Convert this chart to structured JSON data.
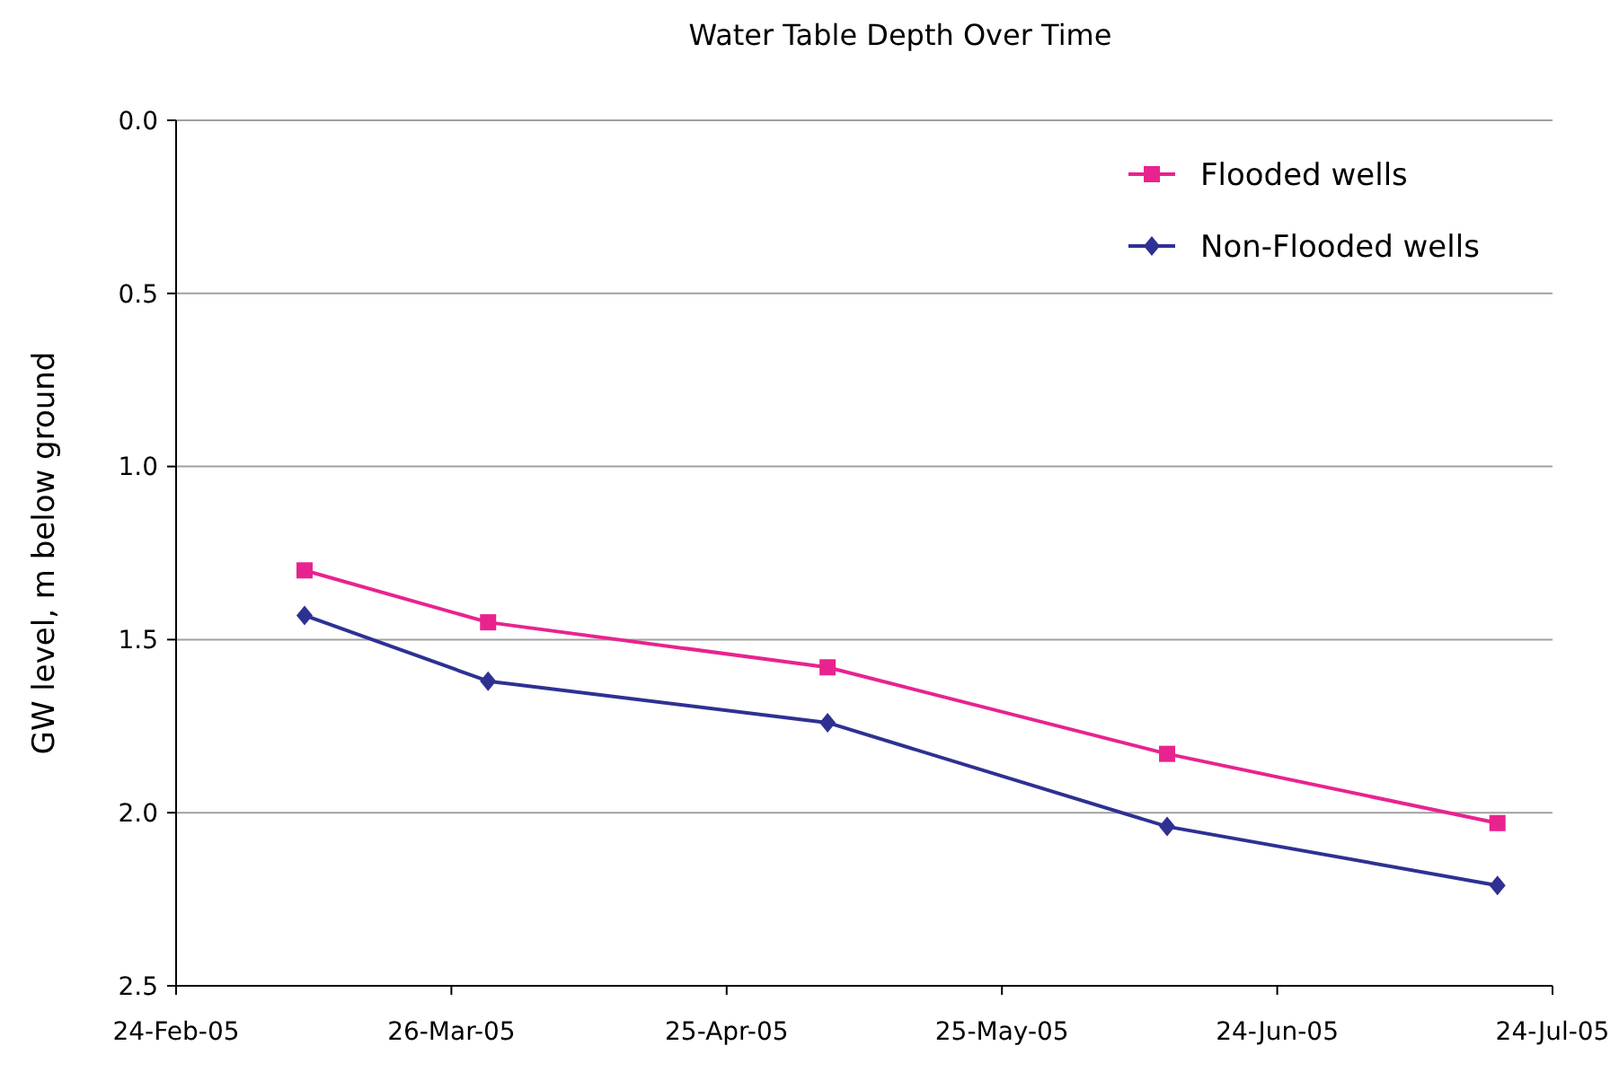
{
  "chart_data": {
    "type": "line",
    "title": "Water Table Depth Over Time",
    "ylabel": "GW level, m below ground",
    "x": [
      "2005-03-10",
      "2005-03-30",
      "2005-05-06",
      "2005-06-12",
      "2005-07-18"
    ],
    "series": [
      {
        "name": "Flooded wells",
        "color": "#e8238f",
        "marker": "square",
        "values": [
          1.3,
          1.45,
          1.58,
          1.83,
          2.03
        ]
      },
      {
        "name": "Non-Flooded wells",
        "color": "#2e3192",
        "marker": "diamond",
        "values": [
          1.43,
          1.62,
          1.74,
          2.04,
          2.21
        ]
      }
    ],
    "xlim": [
      "2005-02-24",
      "2005-07-24"
    ],
    "xticks": [
      {
        "value": "2005-02-24",
        "label": "24-Feb-05"
      },
      {
        "value": "2005-03-26",
        "label": "26-Mar-05"
      },
      {
        "value": "2005-04-25",
        "label": "25-Apr-05"
      },
      {
        "value": "2005-05-25",
        "label": "25-May-05"
      },
      {
        "value": "2005-06-24",
        "label": "24-Jun-05"
      },
      {
        "value": "2005-07-24",
        "label": "24-Jul-05"
      }
    ],
    "ylim": [
      2.5,
      0
    ],
    "yticks": [
      {
        "value": 0,
        "label": "0.0"
      },
      {
        "value": 0.5,
        "label": "0.5"
      },
      {
        "value": 1,
        "label": "1.0"
      },
      {
        "value": 1.5,
        "label": "1.5"
      },
      {
        "value": 2,
        "label": "2.0"
      },
      {
        "value": 2.5,
        "label": "2.5"
      }
    ],
    "grid": "y",
    "legend": "top right",
    "line_style": "solid"
  }
}
